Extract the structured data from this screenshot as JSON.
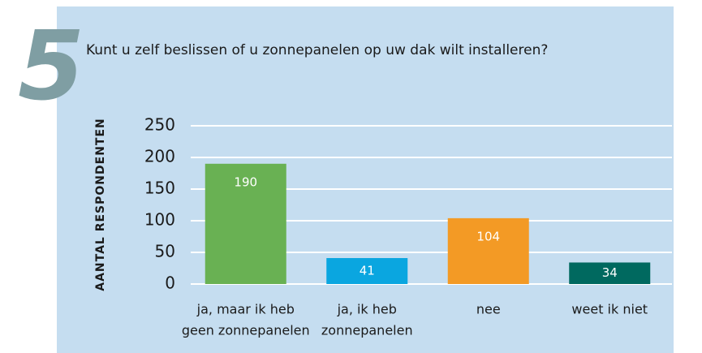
{
  "chart_data": {
    "type": "bar",
    "question_number": "5",
    "title": "Kunt u zelf beslissen of u zonnepanelen op uw dak wilt installeren?",
    "ylabel": "AANTAL RESPONDENTEN",
    "categories": [
      [
        "ja, maar ik heb",
        "geen zonnepanelen"
      ],
      [
        "ja, ik heb",
        "zonnepanelen"
      ],
      [
        "nee"
      ],
      [
        "weet ik niet"
      ]
    ],
    "values": [
      190,
      41,
      104,
      34
    ],
    "colors": [
      "#69b153",
      "#0aa6e0",
      "#f39a25",
      "#00695f"
    ],
    "ylim": [
      0,
      250
    ],
    "yticks": [
      0,
      50,
      100,
      150,
      200,
      250
    ],
    "grid": true
  }
}
